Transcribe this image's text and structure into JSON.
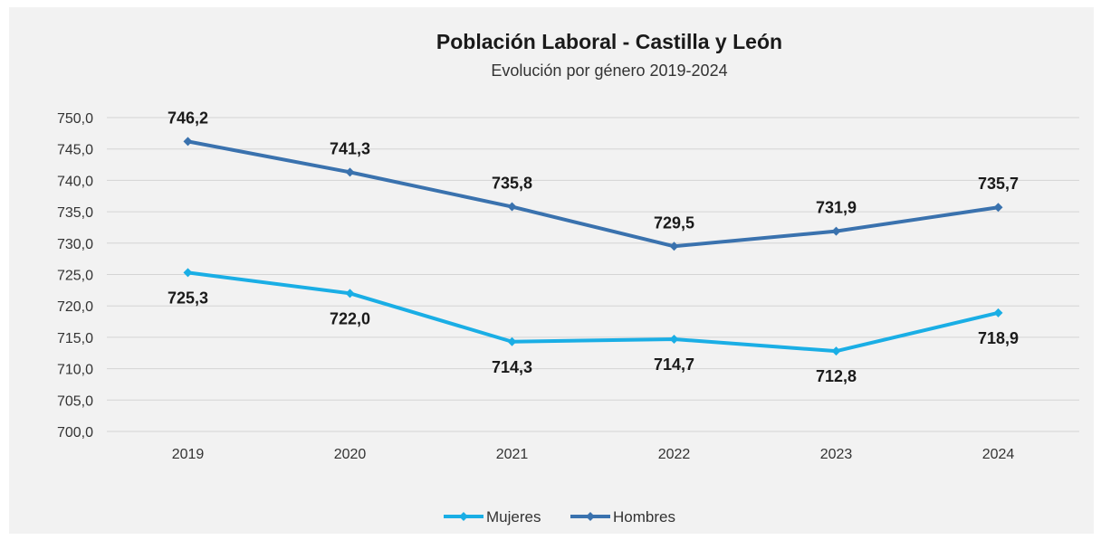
{
  "chart_data": {
    "type": "line",
    "title": "Población Laboral - Castilla y León",
    "subtitle": "Evolución por género 2019-2024",
    "categories": [
      "2019",
      "2020",
      "2021",
      "2022",
      "2023",
      "2024"
    ],
    "ylim": [
      700,
      750
    ],
    "yticks": [
      "700,0",
      "705,0",
      "710,0",
      "715,0",
      "720,0",
      "725,0",
      "730,0",
      "735,0",
      "740,0",
      "745,0",
      "750,0"
    ],
    "grid": true,
    "legend_position": "bottom",
    "series": [
      {
        "name": "Mujeres",
        "color": "#1aaee5",
        "values": [
          725.3,
          722.0,
          714.3,
          714.7,
          712.8,
          718.9
        ],
        "labels": [
          "725,3",
          "722,0",
          "714,3",
          "714,7",
          "712,8",
          "718,9"
        ],
        "label_position": "below"
      },
      {
        "name": "Hombres",
        "color": "#3a72ae",
        "values": [
          746.2,
          741.3,
          735.8,
          729.5,
          731.9,
          735.7
        ],
        "labels": [
          "746,2",
          "741,3",
          "735,8",
          "729,5",
          "731,9",
          "735,7"
        ],
        "label_position": "above"
      }
    ]
  }
}
